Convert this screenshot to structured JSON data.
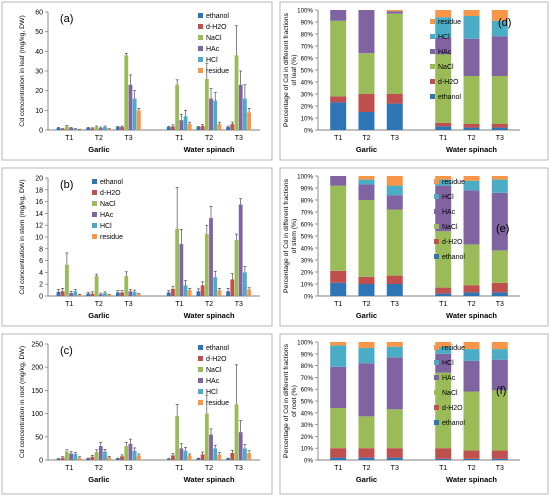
{
  "chart_data": [
    {
      "panel": "(a)",
      "type": "bar",
      "ylabel": "Cd concentration in leaf (mg/kg, DW)",
      "ylim": [
        0,
        60
      ],
      "yticks": [
        0,
        10,
        20,
        30,
        40,
        50,
        60
      ],
      "groups": [
        "Garlic",
        "Water spinach"
      ],
      "categories": [
        "T1",
        "T2",
        "T3",
        "T1",
        "T2",
        "T3"
      ],
      "legend_position": "top-right",
      "series": [
        {
          "name": "ethanol",
          "color": "#2e75b6",
          "values": [
            1.0,
            1.0,
            1.5,
            1.5,
            1.5,
            1.5
          ],
          "errors": [
            0.3,
            0.3,
            0.3,
            0.4,
            0.4,
            0.5
          ]
        },
        {
          "name": "d-H2O",
          "color": "#c0504d",
          "values": [
            0.5,
            0.8,
            1.5,
            1.8,
            2.0,
            3.0
          ],
          "errors": [
            0.2,
            0.3,
            0.5,
            0.8,
            0.8,
            1.0
          ]
        },
        {
          "name": "NaCl",
          "color": "#9bbb59",
          "values": [
            1.8,
            1.5,
            38.0,
            23.0,
            26.0,
            38.0
          ],
          "errors": [
            0.4,
            0.5,
            1.0,
            2.5,
            8.0,
            15.0
          ]
        },
        {
          "name": "HAc",
          "color": "#8064a2",
          "values": [
            1.0,
            1.0,
            23.0,
            5.0,
            16.0,
            23.0
          ],
          "errors": [
            0.3,
            0.5,
            5.0,
            3.0,
            5.0,
            7.0
          ]
        },
        {
          "name": "HCl",
          "color": "#4bacc6",
          "values": [
            0.5,
            1.5,
            16.0,
            7.0,
            15.0,
            16.0
          ],
          "errors": [
            0.2,
            0.5,
            4.0,
            3.0,
            4.0,
            7.0
          ]
        },
        {
          "name": "residue",
          "color": "#f79646",
          "values": [
            0.3,
            0.5,
            10.0,
            3.0,
            3.0,
            9.0
          ],
          "errors": [
            0.1,
            0.2,
            1.0,
            1.0,
            1.0,
            2.0
          ]
        }
      ]
    },
    {
      "panel": "(b)",
      "type": "bar",
      "ylabel": "Cd concentration in stem (mg/kg, DW)",
      "ylim": [
        0,
        20
      ],
      "yticks": [
        0,
        2,
        4,
        6,
        8,
        10,
        12,
        14,
        16,
        18,
        20
      ],
      "groups": [
        "Garlic",
        "Water spinach"
      ],
      "categories": [
        "T1",
        "T2",
        "T3",
        "T1",
        "T2",
        "T3"
      ],
      "legend_position": "top-left",
      "series": [
        {
          "name": "ethanol",
          "color": "#2e75b6",
          "values": [
            0.7,
            0.4,
            0.6,
            0.6,
            0.8,
            0.8
          ],
          "errors": [
            0.4,
            0.2,
            0.3,
            0.3,
            0.4,
            0.5
          ]
        },
        {
          "name": "d-H2O",
          "color": "#c0504d",
          "values": [
            0.8,
            0.4,
            0.6,
            1.2,
            1.8,
            2.8
          ],
          "errors": [
            0.5,
            0.3,
            0.3,
            0.4,
            0.6,
            1.0
          ]
        },
        {
          "name": "NaCl",
          "color": "#9bbb59",
          "values": [
            5.3,
            3.4,
            3.4,
            11.4,
            10.5,
            9.5
          ],
          "errors": [
            2.0,
            0.3,
            0.7,
            7.0,
            1.5,
            1.0
          ]
        },
        {
          "name": "HAc",
          "color": "#8064a2",
          "values": [
            0.5,
            0.3,
            0.8,
            8.8,
            13.2,
            15.5
          ],
          "errors": [
            0.3,
            0.2,
            0.3,
            2.5,
            2.0,
            1.0
          ]
        },
        {
          "name": "HCl",
          "color": "#4bacc6",
          "values": [
            0.8,
            0.5,
            0.7,
            1.8,
            3.2,
            4.0
          ],
          "errors": [
            0.3,
            0.2,
            0.3,
            0.8,
            1.0,
            1.0
          ]
        },
        {
          "name": "residue",
          "color": "#f79646",
          "values": [
            0.2,
            0.2,
            0.3,
            1.0,
            1.0,
            1.1
          ],
          "errors": [
            0.1,
            0.1,
            0.1,
            0.3,
            0.3,
            0.3
          ]
        }
      ]
    },
    {
      "panel": "(c)",
      "type": "bar",
      "ylabel": "Cd concentration in root (mg/kg, DW)",
      "ylim": [
        0,
        250
      ],
      "yticks": [
        0,
        50,
        100,
        150,
        200,
        250
      ],
      "groups": [
        "Garlic",
        "Water spinach"
      ],
      "categories": [
        "T1",
        "T2",
        "T3",
        "T1",
        "T2",
        "T3"
      ],
      "legend_position": "top-right",
      "series": [
        {
          "name": "ethanol",
          "color": "#2e75b6",
          "values": [
            2,
            3,
            3,
            2,
            3,
            3
          ],
          "errors": [
            1,
            1,
            1,
            1,
            1,
            1
          ]
        },
        {
          "name": "d-H2O",
          "color": "#c0504d",
          "values": [
            5,
            7,
            8,
            10,
            12,
            15
          ],
          "errors": [
            2,
            3,
            3,
            4,
            5,
            6
          ]
        },
        {
          "name": "NaCl",
          "color": "#9bbb59",
          "values": [
            18,
            17,
            30,
            95,
            100,
            120
          ],
          "errors": [
            4,
            5,
            8,
            25,
            40,
            85
          ]
        },
        {
          "name": "HAc",
          "color": "#8064a2",
          "values": [
            14,
            30,
            35,
            25,
            55,
            60
          ],
          "errors": [
            4,
            8,
            10,
            10,
            12,
            25
          ]
        },
        {
          "name": "HCl",
          "color": "#4bacc6",
          "values": [
            13,
            18,
            20,
            20,
            25,
            25
          ],
          "errors": [
            3,
            5,
            6,
            7,
            7,
            8
          ]
        },
        {
          "name": "residue",
          "color": "#f79646",
          "values": [
            5,
            6,
            10,
            10,
            12,
            15
          ],
          "errors": [
            2,
            2,
            3,
            3,
            4,
            5
          ]
        }
      ]
    },
    {
      "panel": "(d)",
      "type": "bar",
      "stacked": true,
      "ylabel": "Percentage of Cd in different fractions of leaf (%)",
      "ylim": [
        0,
        100
      ],
      "yticks": [
        "0%",
        "10%",
        "20%",
        "30%",
        "40%",
        "50%",
        "60%",
        "70%",
        "80%",
        "90%",
        "100%"
      ],
      "groups": [
        "Garlic",
        "Water spinach"
      ],
      "categories": [
        "T1",
        "T2",
        "T3",
        "T1",
        "T2",
        "T3"
      ],
      "legend_position": "right",
      "series": [
        {
          "name": "ethanol",
          "color": "#2e75b6",
          "values": [
            23,
            15,
            22,
            3,
            2,
            2
          ]
        },
        {
          "name": "d-H2O",
          "color": "#c0504d",
          "values": [
            5,
            15,
            8,
            3,
            3,
            3
          ]
        },
        {
          "name": "NaCl",
          "color": "#9bbb59",
          "values": [
            63,
            34,
            67,
            57,
            40,
            40
          ]
        },
        {
          "name": "HAc",
          "color": "#8064a2",
          "values": [
            9,
            36,
            2,
            14,
            31,
            33
          ]
        },
        {
          "name": "HCl",
          "color": "#4bacc6",
          "values": [
            0,
            0,
            0,
            17,
            19,
            13
          ]
        },
        {
          "name": "residue",
          "color": "#f79646",
          "values": [
            0,
            0,
            1,
            6,
            5,
            9
          ]
        }
      ]
    },
    {
      "panel": "(e)",
      "type": "bar",
      "stacked": true,
      "ylabel": "Percentage of Cd in different fractions of stem (%)",
      "ylim": [
        0,
        100
      ],
      "yticks": [
        "0%",
        "10%",
        "20%",
        "30%",
        "40%",
        "50%",
        "60%",
        "70%",
        "80%",
        "90%",
        "100%"
      ],
      "groups": [
        "Garlic",
        "Water spinach"
      ],
      "categories": [
        "T1",
        "T2",
        "T3",
        "T1",
        "T2",
        "T3"
      ],
      "legend_position": "right",
      "series": [
        {
          "name": "ethanol",
          "color": "#2e75b6",
          "values": [
            11,
            10,
            10,
            2,
            3,
            3
          ]
        },
        {
          "name": "d-H2O",
          "color": "#c0504d",
          "values": [
            10,
            6,
            7,
            5,
            6,
            8
          ]
        },
        {
          "name": "NaCl",
          "color": "#9bbb59",
          "values": [
            71,
            64,
            55,
            47,
            34,
            27
          ]
        },
        {
          "name": "HAc",
          "color": "#8064a2",
          "values": [
            8,
            13,
            12,
            38,
            45,
            48
          ]
        },
        {
          "name": "HCl",
          "color": "#4bacc6",
          "values": [
            0,
            4,
            8,
            5,
            8,
            11
          ]
        },
        {
          "name": "residue",
          "color": "#f79646",
          "values": [
            0,
            3,
            8,
            3,
            4,
            3
          ]
        }
      ]
    },
    {
      "panel": "(f)",
      "type": "bar",
      "stacked": true,
      "ylabel": "Percentage of Cd in different fractions of root (%)",
      "ylim": [
        0,
        100
      ],
      "yticks": [
        "0%",
        "10%",
        "20%",
        "30%",
        "40%",
        "50%",
        "60%",
        "70%",
        "80%",
        "90%",
        "100%"
      ],
      "groups": [
        "Garlic",
        "Water spinach"
      ],
      "categories": [
        "T1",
        "T2",
        "T3",
        "T1",
        "T2",
        "T3"
      ],
      "legend_position": "right",
      "series": [
        {
          "name": "ethanol",
          "color": "#2e75b6",
          "values": [
            2,
            2,
            2,
            1,
            1,
            1
          ]
        },
        {
          "name": "d-H2O",
          "color": "#c0504d",
          "values": [
            8,
            8,
            8,
            9,
            7,
            7
          ]
        },
        {
          "name": "NaCl",
          "color": "#9bbb59",
          "values": [
            34,
            27,
            33,
            64,
            50,
            51
          ]
        },
        {
          "name": "HAc",
          "color": "#8064a2",
          "values": [
            35,
            45,
            44,
            16,
            26,
            26
          ]
        },
        {
          "name": "HCl",
          "color": "#4bacc6",
          "values": [
            18,
            13,
            9,
            6,
            10,
            9
          ]
        },
        {
          "name": "residue",
          "color": "#f79646",
          "values": [
            3,
            5,
            4,
            4,
            6,
            6
          ]
        }
      ]
    }
  ]
}
